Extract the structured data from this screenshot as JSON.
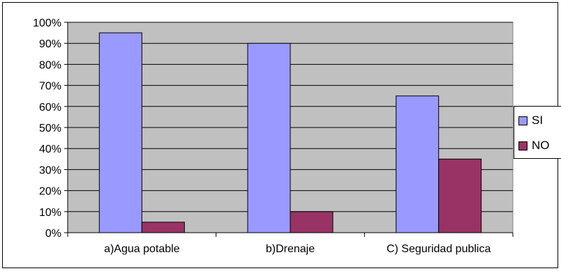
{
  "chart_data": {
    "type": "bar",
    "categories": [
      "a)Agua potable",
      "b)Drenaje",
      "C) Seguridad publica"
    ],
    "series": [
      {
        "name": "SI",
        "values": [
          95,
          90,
          65
        ],
        "color": "#9999ff"
      },
      {
        "name": "NO",
        "values": [
          5,
          10,
          35
        ],
        "color": "#993366"
      }
    ],
    "y_ticks": [
      "0%",
      "10%",
      "20%",
      "30%",
      "40%",
      "50%",
      "60%",
      "70%",
      "80%",
      "90%",
      "100%"
    ],
    "ylim": [
      0,
      100
    ],
    "plot_background": "#c0c0c0",
    "grid": true,
    "legend_position": "right"
  }
}
